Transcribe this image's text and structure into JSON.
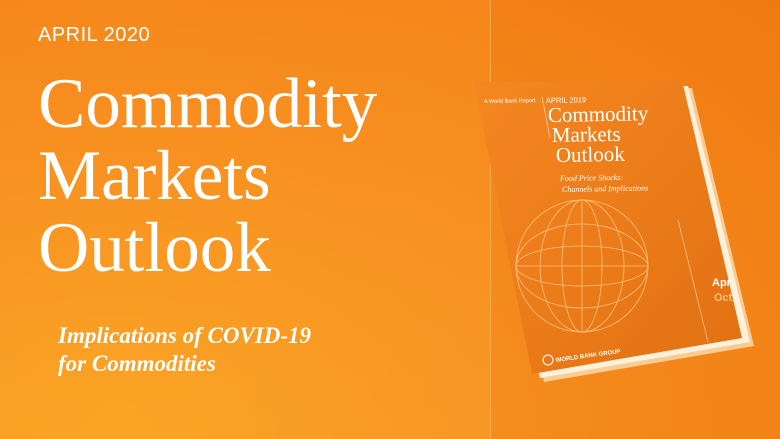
{
  "banner": {
    "date": "APRIL 2020",
    "title_lines": [
      "Commodity",
      "Markets",
      "Outlook"
    ],
    "subtitle_lines": [
      "Implications of  COVID-19",
      "for Commodities"
    ]
  },
  "report_cover": {
    "series": "A World Bank Report",
    "date": "APRIL 2019",
    "title_lines": [
      "Commodity",
      "Markets",
      "Outlook"
    ],
    "subtitle_lines": [
      "Food Price Shocks:",
      "Channels and Implications"
    ],
    "tab_labels": [
      "Apr",
      "Oct"
    ],
    "publisher": "WORLD BANK GROUP"
  },
  "colors": {
    "background": "#f58b1c",
    "cover": "#f07d16",
    "text": "#ffffff"
  }
}
